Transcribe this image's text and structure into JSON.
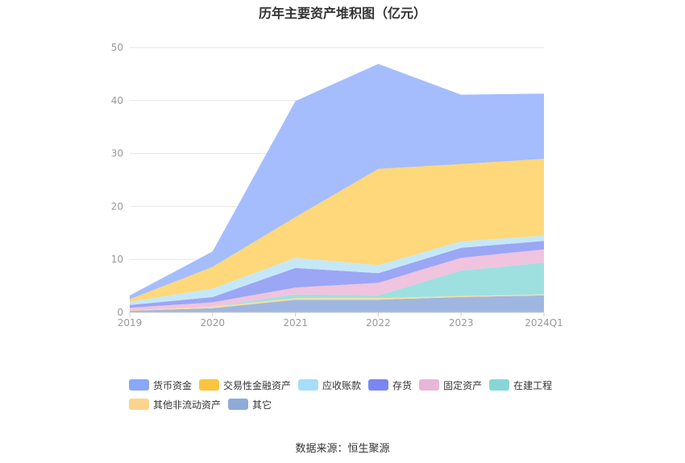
{
  "chart_data": {
    "type": "area",
    "stacked": true,
    "title": "历年主要资产堆积图（亿元）",
    "categories": [
      "2019",
      "2020",
      "2021",
      "2022",
      "2023",
      "2024Q1"
    ],
    "ylim": [
      0,
      50
    ],
    "yticks": [
      0,
      10,
      20,
      30,
      40,
      50
    ],
    "grid": true,
    "legend_position": "bottom",
    "series": [
      {
        "name": "其它",
        "color": "#9fb7e0",
        "values": [
          0.3,
          0.8,
          2.4,
          2.4,
          2.9,
          3.2
        ]
      },
      {
        "name": "其他非流动资产",
        "color": "#fddc9a",
        "values": [
          0.1,
          0.3,
          0.3,
          0.3,
          0.2,
          0.2
        ]
      },
      {
        "name": "在建工程",
        "color": "#9ee0e0",
        "values": [
          0.0,
          0.0,
          0.7,
          0.5,
          4.8,
          6.0
        ]
      },
      {
        "name": "固定资产",
        "color": "#f0c3de",
        "values": [
          0.5,
          0.8,
          1.3,
          2.4,
          2.4,
          2.5
        ]
      },
      {
        "name": "存货",
        "color": "#9ba6f5",
        "values": [
          0.5,
          1.0,
          3.7,
          1.8,
          1.9,
          1.6
        ]
      },
      {
        "name": "应收账款",
        "color": "#c5e8f8",
        "values": [
          0.6,
          1.6,
          1.9,
          1.5,
          1.2,
          1.0
        ]
      },
      {
        "name": "交易性金融资产",
        "color": "#fed87a",
        "values": [
          0.5,
          4.1,
          7.7,
          18.2,
          14.6,
          14.5
        ]
      },
      {
        "name": "货币资金",
        "color": "#a5bdfd",
        "values": [
          0.7,
          2.9,
          21.9,
          19.8,
          13.1,
          12.3
        ]
      }
    ]
  },
  "legend": [
    {
      "name": "货币资金",
      "color": "#8aa8f8"
    },
    {
      "name": "交易性金融资产",
      "color": "#fbc440"
    },
    {
      "name": "应收账款",
      "color": "#a7ddf7"
    },
    {
      "name": "存货",
      "color": "#7b86f2"
    },
    {
      "name": "固定资产",
      "color": "#e8b6d8"
    },
    {
      "name": "在建工程",
      "color": "#86d6d6"
    },
    {
      "name": "其他非流动资产",
      "color": "#fdd48c"
    },
    {
      "name": "其它",
      "color": "#8eaad8"
    }
  ],
  "source": "数据来源：恒生聚源"
}
